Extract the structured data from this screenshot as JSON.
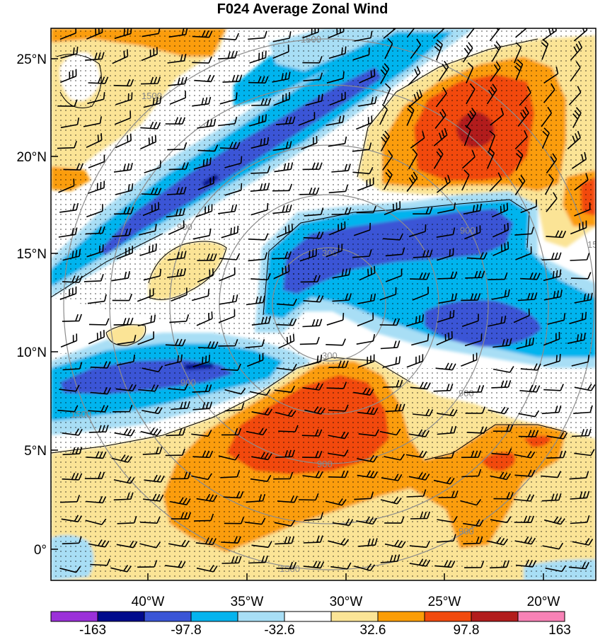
{
  "title": "F024 Average Zonal Wind",
  "axes": {
    "lat_ticks": [
      "25°N",
      "20°N",
      "15°N",
      "10°N",
      "5°N",
      "0°"
    ],
    "lon_ticks": [
      "40°W",
      "35°W",
      "30°W",
      "25°W",
      "20°W"
    ]
  },
  "rings": {
    "labels": [
      "300",
      "900",
      "1500",
      "300",
      "900",
      "900",
      "1500",
      "1500",
      "1500",
      "900",
      "900",
      "1500",
      "900"
    ]
  },
  "colorbar": {
    "colors": [
      "#9b30d9",
      "#000a8c",
      "#3a55d6",
      "#05b4ee",
      "#a8def5",
      "#ffffff",
      "#fbe496",
      "#fb9d07",
      "#f24a0d",
      "#b21c1c",
      "#f882b6"
    ],
    "labels": [
      "-163",
      "-97.8",
      "-32.6",
      "32.6",
      "97.8",
      "163"
    ]
  },
  "palette": {
    "light_blue": "#a8def5",
    "mid_blue": "#05b4ee",
    "dark_blue": "#3a55d6",
    "navy": "#000a8c",
    "light_yellow": "#fbe496",
    "orange": "#fb9d07",
    "red_orange": "#f24a0d",
    "dark_red": "#b21c1c"
  }
}
